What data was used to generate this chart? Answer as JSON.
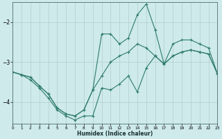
{
  "xlabel": "Humidex (Indice chaleur)",
  "bg_color": "#ceeaea",
  "line_color": "#2d7a6e",
  "grid_color": "#b0cccc",
  "xlim": [
    0,
    23
  ],
  "ylim": [
    -4.55,
    -1.5
  ],
  "yticks": [
    -4,
    -3,
    -2
  ],
  "xticks": [
    0,
    1,
    2,
    3,
    4,
    5,
    6,
    7,
    8,
    9,
    10,
    11,
    12,
    13,
    14,
    15,
    16,
    17,
    18,
    19,
    20,
    21,
    22,
    23
  ],
  "line1_x": [
    0,
    1,
    2,
    3,
    4,
    5,
    6,
    7,
    8,
    9,
    10,
    11,
    12,
    13,
    14,
    15,
    16,
    17,
    18,
    19,
    20,
    21,
    22,
    23
  ],
  "line1_y": [
    -3.25,
    -3.32,
    -3.38,
    -3.6,
    -3.8,
    -4.15,
    -4.3,
    -4.35,
    -4.2,
    -3.7,
    -2.3,
    -2.3,
    -2.55,
    -2.4,
    -1.82,
    -1.55,
    -2.2,
    -3.05,
    -2.55,
    -2.45,
    -2.45,
    -2.55,
    -2.65,
    -3.3
  ],
  "line2_x": [
    0,
    1,
    2,
    3,
    4,
    5,
    6,
    7,
    8,
    9,
    10,
    11,
    12,
    13,
    14,
    15,
    16,
    17,
    18,
    19,
    20,
    21,
    22,
    23
  ],
  "line2_y": [
    -3.25,
    -3.32,
    -3.38,
    -3.6,
    -3.8,
    -4.15,
    -4.3,
    -4.35,
    -4.2,
    -3.7,
    -3.35,
    -3.0,
    -2.85,
    -2.75,
    -2.55,
    -2.65,
    -2.85,
    -3.05,
    -2.85,
    -2.75,
    -2.7,
    -2.75,
    -2.8,
    -3.3
  ],
  "line3_x": [
    0,
    1,
    2,
    3,
    4,
    5,
    6,
    7,
    8,
    9,
    10,
    11,
    12,
    13,
    14,
    15,
    16,
    17,
    18,
    19,
    20,
    21,
    22,
    23
  ],
  "line3_y": [
    -3.25,
    -3.32,
    -3.45,
    -3.65,
    -3.9,
    -4.2,
    -4.35,
    -4.45,
    -4.35,
    -4.35,
    -3.65,
    -3.7,
    -3.55,
    -3.35,
    -3.75,
    -3.15,
    -2.85,
    -3.05,
    -2.85,
    -2.75,
    -2.7,
    -2.75,
    -2.8,
    -3.3
  ]
}
